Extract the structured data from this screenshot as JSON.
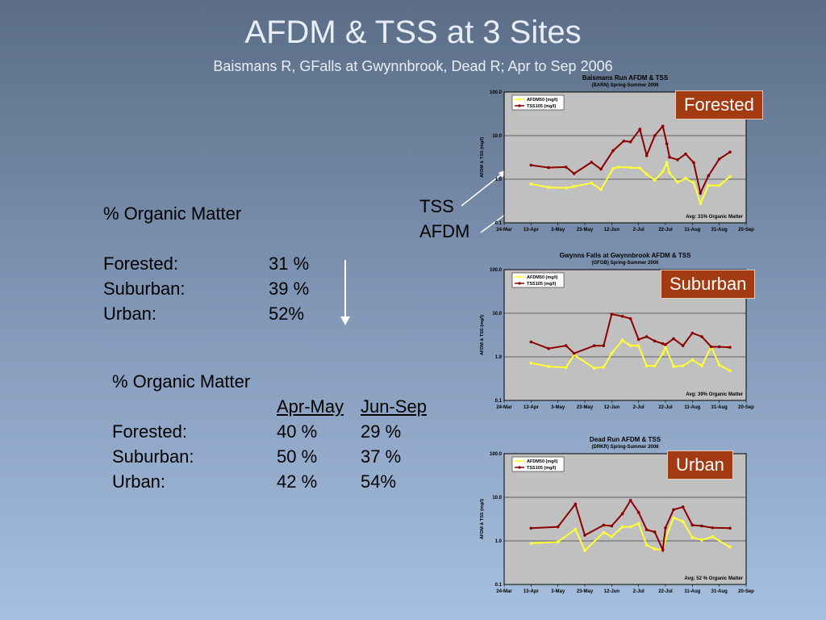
{
  "slide": {
    "title": "AFDM & TSS at 3 Sites",
    "subtitle": "Baismans R, GFalls at Gwynnbrook, Dead R; Apr to Sep 2006"
  },
  "summary1": {
    "heading": "% Organic Matter",
    "rows": [
      {
        "site": "Forested:",
        "value": "31 %"
      },
      {
        "site": "Suburban:",
        "value": "39 %"
      },
      {
        "site": "Urban:",
        "value": "52%"
      }
    ]
  },
  "summary2": {
    "heading": "% Organic Matter",
    "col1": "Apr-May",
    "col2": "Jun-Sep",
    "rows": [
      {
        "site": "Forested:",
        "v1": "40 %",
        "v2": "29 %"
      },
      {
        "site": "Suburban:",
        "v1": "50 %",
        "v2": "37 %"
      },
      {
        "site": "Urban:",
        "v1": "42 %",
        "v2": "54%"
      }
    ]
  },
  "pointer_labels": {
    "tss": "TSS",
    "afdm": "AFDM"
  },
  "badges": {
    "forested": "Forested",
    "suburban": "Suburban",
    "urban": "Urban"
  },
  "colors": {
    "tss": "#8b0000",
    "afdm": "#ffff33",
    "plot_bg": "#c0c0c0",
    "badge": "#a33a12"
  },
  "chart_data": [
    {
      "type": "line",
      "title": "Baismans Run AFDM & TSS",
      "subtitle": "(BARN) Spring-Summer 2006",
      "ylabel": "AFDM & TSS (mg/l)",
      "y_scale": "log",
      "ylim": [
        0.1,
        100
      ],
      "y_ticks": [
        "100.0",
        "10.0",
        "1.0",
        "0.1"
      ],
      "x_ticks": [
        "24-Mar",
        "13-Apr",
        "3-May",
        "23-May",
        "12-Jun",
        "2-Jul",
        "22-Jul",
        "11-Aug",
        "31-Aug",
        "20-Sep"
      ],
      "legend": "top-left",
      "annotation": "Avg: 31% Organic Matter",
      "series": [
        {
          "name": "AFDM50 (mg/l)",
          "x": [
            "2006-04-13",
            "2006-04-26",
            "2006-05-09",
            "2006-05-15",
            "2006-05-28",
            "2006-06-04",
            "2006-06-13",
            "2006-06-17",
            "2006-06-26",
            "2006-07-03",
            "2006-07-08",
            "2006-07-14",
            "2006-07-20",
            "2006-07-23",
            "2006-07-25",
            "2006-07-31",
            "2006-08-06",
            "2006-08-12",
            "2006-08-17",
            "2006-08-23",
            "2006-08-31",
            "2006-09-08"
          ],
          "values": [
            0.78,
            0.65,
            0.63,
            0.68,
            0.82,
            0.58,
            1.75,
            1.9,
            1.85,
            1.8,
            1.3,
            0.95,
            1.5,
            2.4,
            1.4,
            0.85,
            1.05,
            0.82,
            0.28,
            0.72,
            0.72,
            1.15
          ]
        },
        {
          "name": "TSS105 (mg/l)",
          "x": [
            "2006-04-13",
            "2006-04-26",
            "2006-05-09",
            "2006-05-15",
            "2006-05-28",
            "2006-06-04",
            "2006-06-13",
            "2006-06-21",
            "2006-06-26",
            "2006-07-03",
            "2006-07-08",
            "2006-07-14",
            "2006-07-20",
            "2006-07-23",
            "2006-07-25",
            "2006-07-31",
            "2006-08-06",
            "2006-08-12",
            "2006-08-17",
            "2006-08-23",
            "2006-08-31",
            "2006-09-08"
          ],
          "values": [
            2.1,
            1.85,
            1.9,
            1.35,
            2.45,
            1.7,
            4.5,
            7.5,
            7.2,
            14,
            3.5,
            10,
            16.5,
            6.5,
            3.2,
            2.8,
            3.8,
            2.4,
            0.48,
            1.2,
            2.9,
            4.2
          ]
        }
      ]
    },
    {
      "type": "line",
      "title": "Gwynns Falls at Gwynnbrook AFDM & TSS",
      "subtitle": "(GFGB) Spring-Summer 2006",
      "ylabel": "AFDM & TSS (mg/l)",
      "y_scale": "log",
      "ylim": [
        0.1,
        100
      ],
      "y_ticks": [
        "100.0",
        "10.0",
        "1.0",
        "0.1"
      ],
      "x_ticks": [
        "24-Mar",
        "13-Apr",
        "3-May",
        "23-May",
        "12-Jun",
        "2-Jul",
        "22-Jul",
        "11-Aug",
        "31-Aug",
        "20-Sep"
      ],
      "legend": "top-left",
      "annotation": "Avg: 39% Organic Matter",
      "series": [
        {
          "name": "AFDM50 (mg/l)",
          "x": [
            "2006-04-13",
            "2006-04-26",
            "2006-05-09",
            "2006-05-15",
            "2006-05-30",
            "2006-06-06",
            "2006-06-12",
            "2006-06-20",
            "2006-06-26",
            "2006-07-02",
            "2006-07-08",
            "2006-07-14",
            "2006-07-20",
            "2006-07-22",
            "2006-07-28",
            "2006-08-04",
            "2006-08-11",
            "2006-08-18",
            "2006-08-25",
            "2006-08-31",
            "2006-09-08"
          ],
          "values": [
            0.72,
            0.6,
            0.57,
            1.1,
            0.55,
            0.58,
            1.2,
            2.4,
            1.8,
            1.8,
            0.62,
            0.62,
            1.2,
            1.7,
            0.6,
            0.62,
            0.85,
            0.62,
            1.7,
            0.65,
            0.48
          ]
        },
        {
          "name": "TSS105 (mg/l)",
          "x": [
            "2006-04-13",
            "2006-04-26",
            "2006-05-09",
            "2006-05-15",
            "2006-05-30",
            "2006-06-06",
            "2006-06-12",
            "2006-06-20",
            "2006-06-26",
            "2006-07-02",
            "2006-07-08",
            "2006-07-14",
            "2006-07-20",
            "2006-07-22",
            "2006-07-28",
            "2006-08-04",
            "2006-08-11",
            "2006-08-18",
            "2006-08-25",
            "2006-08-31",
            "2006-09-08"
          ],
          "values": [
            2.2,
            1.55,
            1.8,
            1.2,
            1.8,
            1.8,
            9.5,
            8.5,
            7.5,
            2.5,
            2.9,
            2.3,
            2.0,
            1.9,
            2.6,
            1.8,
            3.5,
            2.9,
            1.7,
            1.7,
            1.65
          ]
        }
      ]
    },
    {
      "type": "line",
      "title": "Dead Run AFDM & TSS",
      "subtitle": "(DRKR) Spring-Summer 2006",
      "ylabel": "AFDM & TSS (mg/l)",
      "y_scale": "log",
      "ylim": [
        0.1,
        100
      ],
      "y_ticks": [
        "100.0",
        "10.0",
        "1.0",
        "0.1"
      ],
      "x_ticks": [
        "24-Mar",
        "13-Apr",
        "3-May",
        "23-May",
        "12-Jun",
        "2-Jul",
        "22-Jul",
        "11-Aug",
        "31-Aug",
        "20-Sep"
      ],
      "legend": "top-left",
      "annotation": "Avg: 52 % Organic Matter",
      "series": [
        {
          "name": "AFDM50 (mg/l)",
          "x": [
            "2006-04-13",
            "2006-05-03",
            "2006-05-16",
            "2006-05-23",
            "2006-06-06",
            "2006-06-12",
            "2006-06-20",
            "2006-06-26",
            "2006-07-02",
            "2006-07-08",
            "2006-07-14",
            "2006-07-20",
            "2006-07-22",
            "2006-07-28",
            "2006-08-04",
            "2006-08-11",
            "2006-08-18",
            "2006-08-26",
            "2006-09-08"
          ],
          "values": [
            0.88,
            0.95,
            1.85,
            0.6,
            1.55,
            1.25,
            2.1,
            2.1,
            2.5,
            0.8,
            0.65,
            0.62,
            1.1,
            3.4,
            2.8,
            1.2,
            1.05,
            1.25,
            0.72
          ]
        },
        {
          "name": "TSS105 (mg/l)",
          "x": [
            "2006-04-13",
            "2006-05-03",
            "2006-05-16",
            "2006-05-23",
            "2006-06-06",
            "2006-06-12",
            "2006-06-20",
            "2006-06-26",
            "2006-07-02",
            "2006-07-08",
            "2006-07-14",
            "2006-07-20",
            "2006-07-22",
            "2006-07-28",
            "2006-08-04",
            "2006-08-11",
            "2006-08-18",
            "2006-08-26",
            "2006-09-08"
          ],
          "values": [
            1.95,
            2.1,
            7.0,
            1.35,
            2.3,
            2.2,
            4.2,
            8.5,
            4.5,
            1.8,
            1.6,
            0.62,
            2.0,
            5.2,
            6.0,
            2.3,
            2.2,
            2.0,
            1.95
          ]
        }
      ]
    }
  ]
}
